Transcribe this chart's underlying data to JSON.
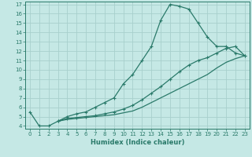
{
  "bg_color": "#c5e8e5",
  "grid_color": "#a8d0cc",
  "line_color": "#2a7a6a",
  "xlabel": "Humidex (Indice chaleur)",
  "xlim": [
    -0.5,
    23.5
  ],
  "ylim": [
    3.7,
    17.3
  ],
  "xticks": [
    0,
    1,
    2,
    3,
    4,
    5,
    6,
    7,
    8,
    9,
    10,
    11,
    12,
    13,
    14,
    15,
    16,
    17,
    18,
    19,
    20,
    21,
    22,
    23
  ],
  "yticks": [
    4,
    5,
    6,
    7,
    8,
    9,
    10,
    11,
    12,
    13,
    14,
    15,
    16,
    17
  ],
  "line1_x": [
    0,
    1,
    2,
    3,
    4,
    5,
    6,
    7,
    8,
    9,
    10,
    11,
    12,
    13,
    14,
    15,
    16,
    17,
    18,
    19,
    20,
    21,
    22,
    23
  ],
  "line1_y": [
    5.5,
    4.0,
    4.0,
    4.5,
    5.0,
    5.3,
    5.5,
    6.0,
    6.5,
    7.0,
    8.5,
    9.5,
    11.0,
    12.5,
    15.3,
    17.0,
    16.8,
    16.5,
    15.0,
    13.5,
    12.5,
    12.5,
    11.8,
    11.5
  ],
  "line2_x": [
    3,
    4,
    5,
    6,
    7,
    8,
    9,
    10,
    11,
    12,
    13,
    14,
    15,
    16,
    17,
    18,
    19,
    20,
    21,
    22,
    23
  ],
  "line2_y": [
    4.5,
    4.8,
    4.9,
    5.0,
    5.1,
    5.3,
    5.5,
    5.8,
    6.2,
    6.8,
    7.5,
    8.2,
    9.0,
    9.8,
    10.5,
    11.0,
    11.3,
    11.8,
    12.3,
    12.5,
    11.5
  ],
  "line3_x": [
    3,
    4,
    5,
    6,
    7,
    8,
    9,
    10,
    11,
    12,
    13,
    14,
    15,
    16,
    17,
    18,
    19,
    20,
    21,
    22,
    23
  ],
  "line3_y": [
    4.5,
    4.7,
    4.8,
    4.9,
    5.0,
    5.1,
    5.2,
    5.4,
    5.6,
    6.0,
    6.5,
    7.0,
    7.5,
    8.0,
    8.5,
    9.0,
    9.5,
    10.2,
    10.8,
    11.2,
    11.5
  ],
  "marker": "+",
  "markersize": 3,
  "linewidth": 0.9,
  "tick_fontsize": 5.0,
  "xlabel_fontsize": 6.0
}
